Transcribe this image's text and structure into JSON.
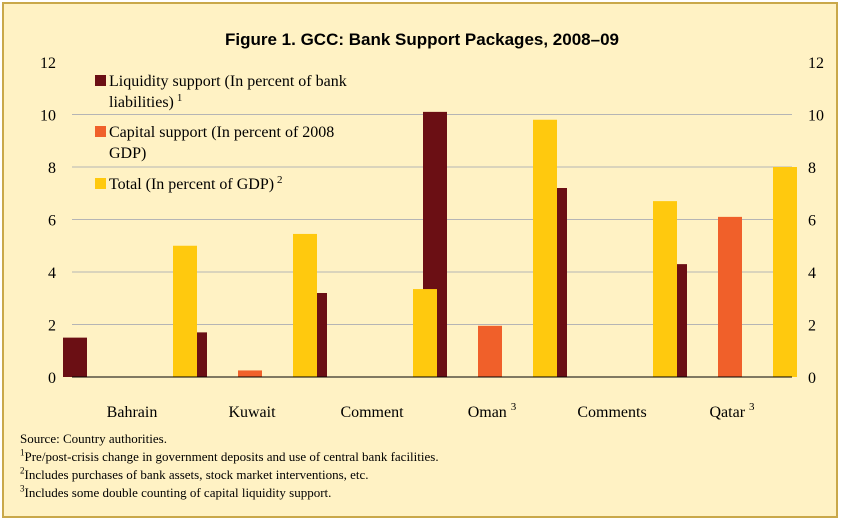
{
  "chart_data": {
    "type": "bar",
    "title": "Figure 1. GCC: Bank Support Packages, 2008–09",
    "categories": [
      "Bahrain",
      "Kuwait",
      "Comment",
      "Oman",
      "Comments",
      "Qatar"
    ],
    "category_superscripts": [
      "",
      "",
      "",
      "3",
      "",
      "3"
    ],
    "series": [
      {
        "name": "Liquidity support (In percent of bank liabilities)",
        "superscript": "1",
        "color": "#6b0f14",
        "values": [
          1.5,
          1.7,
          3.2,
          10.1,
          7.2,
          4.3
        ]
      },
      {
        "name": "Capital support (In percent of 2008 GDP)",
        "superscript": "",
        "color": "#f0602a",
        "values": [
          0,
          0.25,
          0,
          1.95,
          0,
          6.1
        ]
      },
      {
        "name": "Total (In percent of GDP)",
        "superscript": "2",
        "color": "#ffc90e",
        "values": [
          5.0,
          5.45,
          3.35,
          9.8,
          6.7,
          8.0
        ]
      }
    ],
    "ylim": [
      0,
      12
    ],
    "yticks": [
      "0",
      "2",
      "4",
      "6",
      "8",
      "10",
      "12"
    ],
    "grid": true,
    "legend_position": "top-left"
  },
  "legend_lines": [
    [
      "Liquidity support (In percent of bank",
      "liabilities)"
    ],
    [
      "Capital support (In percent of 2008",
      "GDP)"
    ],
    [
      "Total (In percent of GDP)"
    ]
  ],
  "footnotes": {
    "source": "Source: Country authorities.",
    "notes": [
      {
        "mark": "1",
        "text": "Pre/post-crisis change in government deposits and use of central bank facilities."
      },
      {
        "mark": "2",
        "text": "Includes purchases of bank assets, stock market interventions, etc."
      },
      {
        "mark": "3",
        "text": "Includes some double counting of capital liquidity support."
      }
    ]
  }
}
